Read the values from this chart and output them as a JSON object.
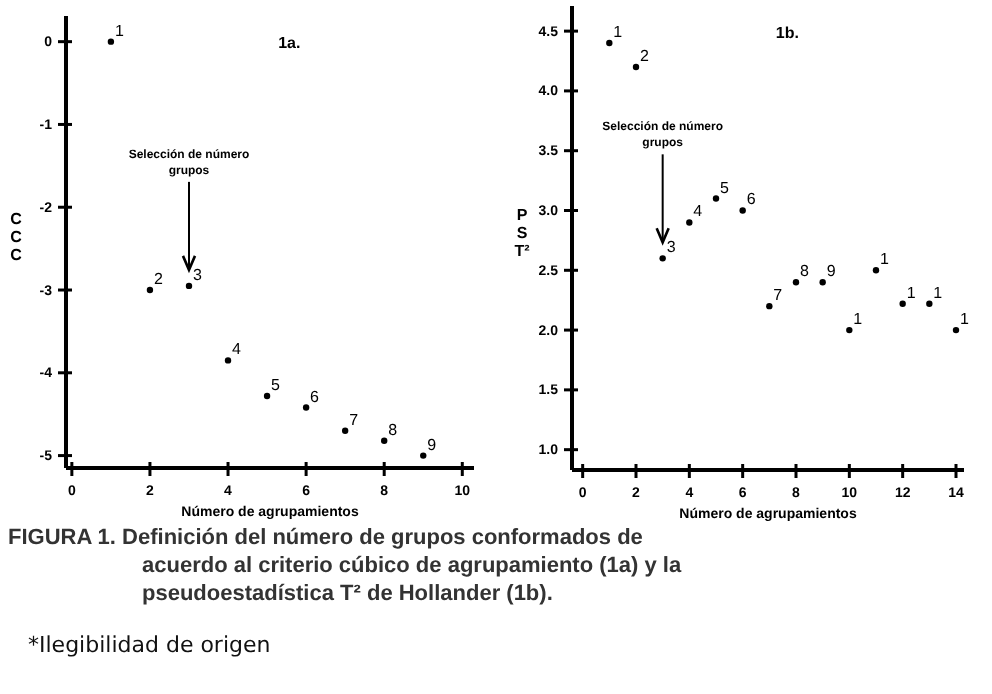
{
  "chart_data": [
    {
      "type": "scatter",
      "title": "1a.",
      "xlabel": "Número de agrupamientos",
      "ylabel": "CCC",
      "marker": "circle",
      "grid": false,
      "xlim": [
        -0.15,
        10.3
      ],
      "xticks": [
        0,
        2,
        4,
        6,
        8,
        10
      ],
      "ylim": [
        -5.15,
        0.31
      ],
      "yticks": [
        {
          "value": 0,
          "label": "0"
        },
        {
          "value": -1,
          "label": "-1"
        },
        {
          "value": -2,
          "label": "-2"
        },
        {
          "value": -3,
          "label": "-3"
        },
        {
          "value": -4,
          "label": "-4"
        },
        {
          "value": -5,
          "label": "-5"
        }
      ],
      "series": [
        {
          "color": "#000000",
          "x": [
            1,
            2,
            3,
            4,
            5,
            6,
            7,
            8,
            9
          ],
          "values": [
            0,
            -3.0,
            -2.95,
            -3.85,
            -4.28,
            -4.42,
            -4.7,
            -4.82,
            -5.0
          ]
        }
      ],
      "annotations": [
        {
          "text": "Selección de número grupos",
          "x": 3,
          "y": -2.95
        },
        {
          "text": "1",
          "x": 1,
          "y": 0
        },
        {
          "text": "2",
          "x": 2,
          "y": -3.0
        },
        {
          "text": "3",
          "x": 3,
          "y": -2.95
        },
        {
          "text": "4",
          "x": 4,
          "y": -3.85
        },
        {
          "text": "5",
          "x": 5,
          "y": -4.28
        },
        {
          "text": "6",
          "x": 6,
          "y": -4.42
        },
        {
          "text": "7",
          "x": 7,
          "y": -4.7
        },
        {
          "text": "8",
          "x": 8,
          "y": -4.82
        },
        {
          "text": "9",
          "x": 9,
          "y": -5.0
        }
      ]
    },
    {
      "type": "scatter",
      "title": "1b.",
      "xlabel": "Número de agrupamientos",
      "ylabel": "PST²",
      "marker": "circle",
      "grid": false,
      "xlim": [
        -0.4,
        14.3
      ],
      "xticks": [
        0,
        2,
        4,
        6,
        8,
        10,
        12,
        14
      ],
      "ylim": [
        0.83,
        4.71
      ],
      "yticks": [
        {
          "value": 1,
          "label": "1.0"
        },
        {
          "value": 1.5,
          "label": "1.5"
        },
        {
          "value": 2,
          "label": "2.0"
        },
        {
          "value": 2.5,
          "label": "2.5"
        },
        {
          "value": 3,
          "label": "3.0"
        },
        {
          "value": 3.5,
          "label": "3.5"
        },
        {
          "value": 4,
          "label": "4.0"
        },
        {
          "value": 4.5,
          "label": "4.5"
        }
      ],
      "series": [
        {
          "color": "#000000",
          "x": [
            1,
            2,
            3,
            4,
            5,
            6,
            7,
            8,
            9,
            10,
            11,
            12,
            13,
            14
          ],
          "values": [
            4.4,
            4.2,
            2.6,
            2.9,
            3.1,
            3.0,
            2.2,
            2.4,
            2.4,
            2.0,
            2.5,
            2.22,
            2.22,
            2.0
          ]
        }
      ],
      "annotations": [
        {
          "text": "Selección de número grupos",
          "x": 3,
          "y": 2.6
        },
        {
          "text": "1",
          "x": 1,
          "y": 4.4
        },
        {
          "text": "2",
          "x": 2,
          "y": 4.2
        },
        {
          "text": "3",
          "x": 3,
          "y": 2.6
        },
        {
          "text": "4",
          "x": 4,
          "y": 2.9
        },
        {
          "text": "5",
          "x": 5,
          "y": 3.1
        },
        {
          "text": "6",
          "x": 6,
          "y": 3.0
        },
        {
          "text": "7",
          "x": 7,
          "y": 2.2
        },
        {
          "text": "8",
          "x": 8,
          "y": 2.4
        },
        {
          "text": "9",
          "x": 9,
          "y": 2.4
        },
        {
          "text": "1",
          "x": 10,
          "y": 2.0
        },
        {
          "text": "1",
          "x": 11,
          "y": 2.5
        },
        {
          "text": "1",
          "x": 12,
          "y": 2.22
        },
        {
          "text": "1",
          "x": 13,
          "y": 2.22
        },
        {
          "text": "1",
          "x": 14,
          "y": 2.0
        }
      ]
    },
    {
      "type": "other",
      "annotations": [
        "FIGURA 1. Definición del número de grupos conformados de acuerdo al criterio cúbico de agrupamiento (1a) y la pseudoestadística T² de Hollander (1b).",
        "*Ilegibilidad de origen"
      ]
    }
  ]
}
